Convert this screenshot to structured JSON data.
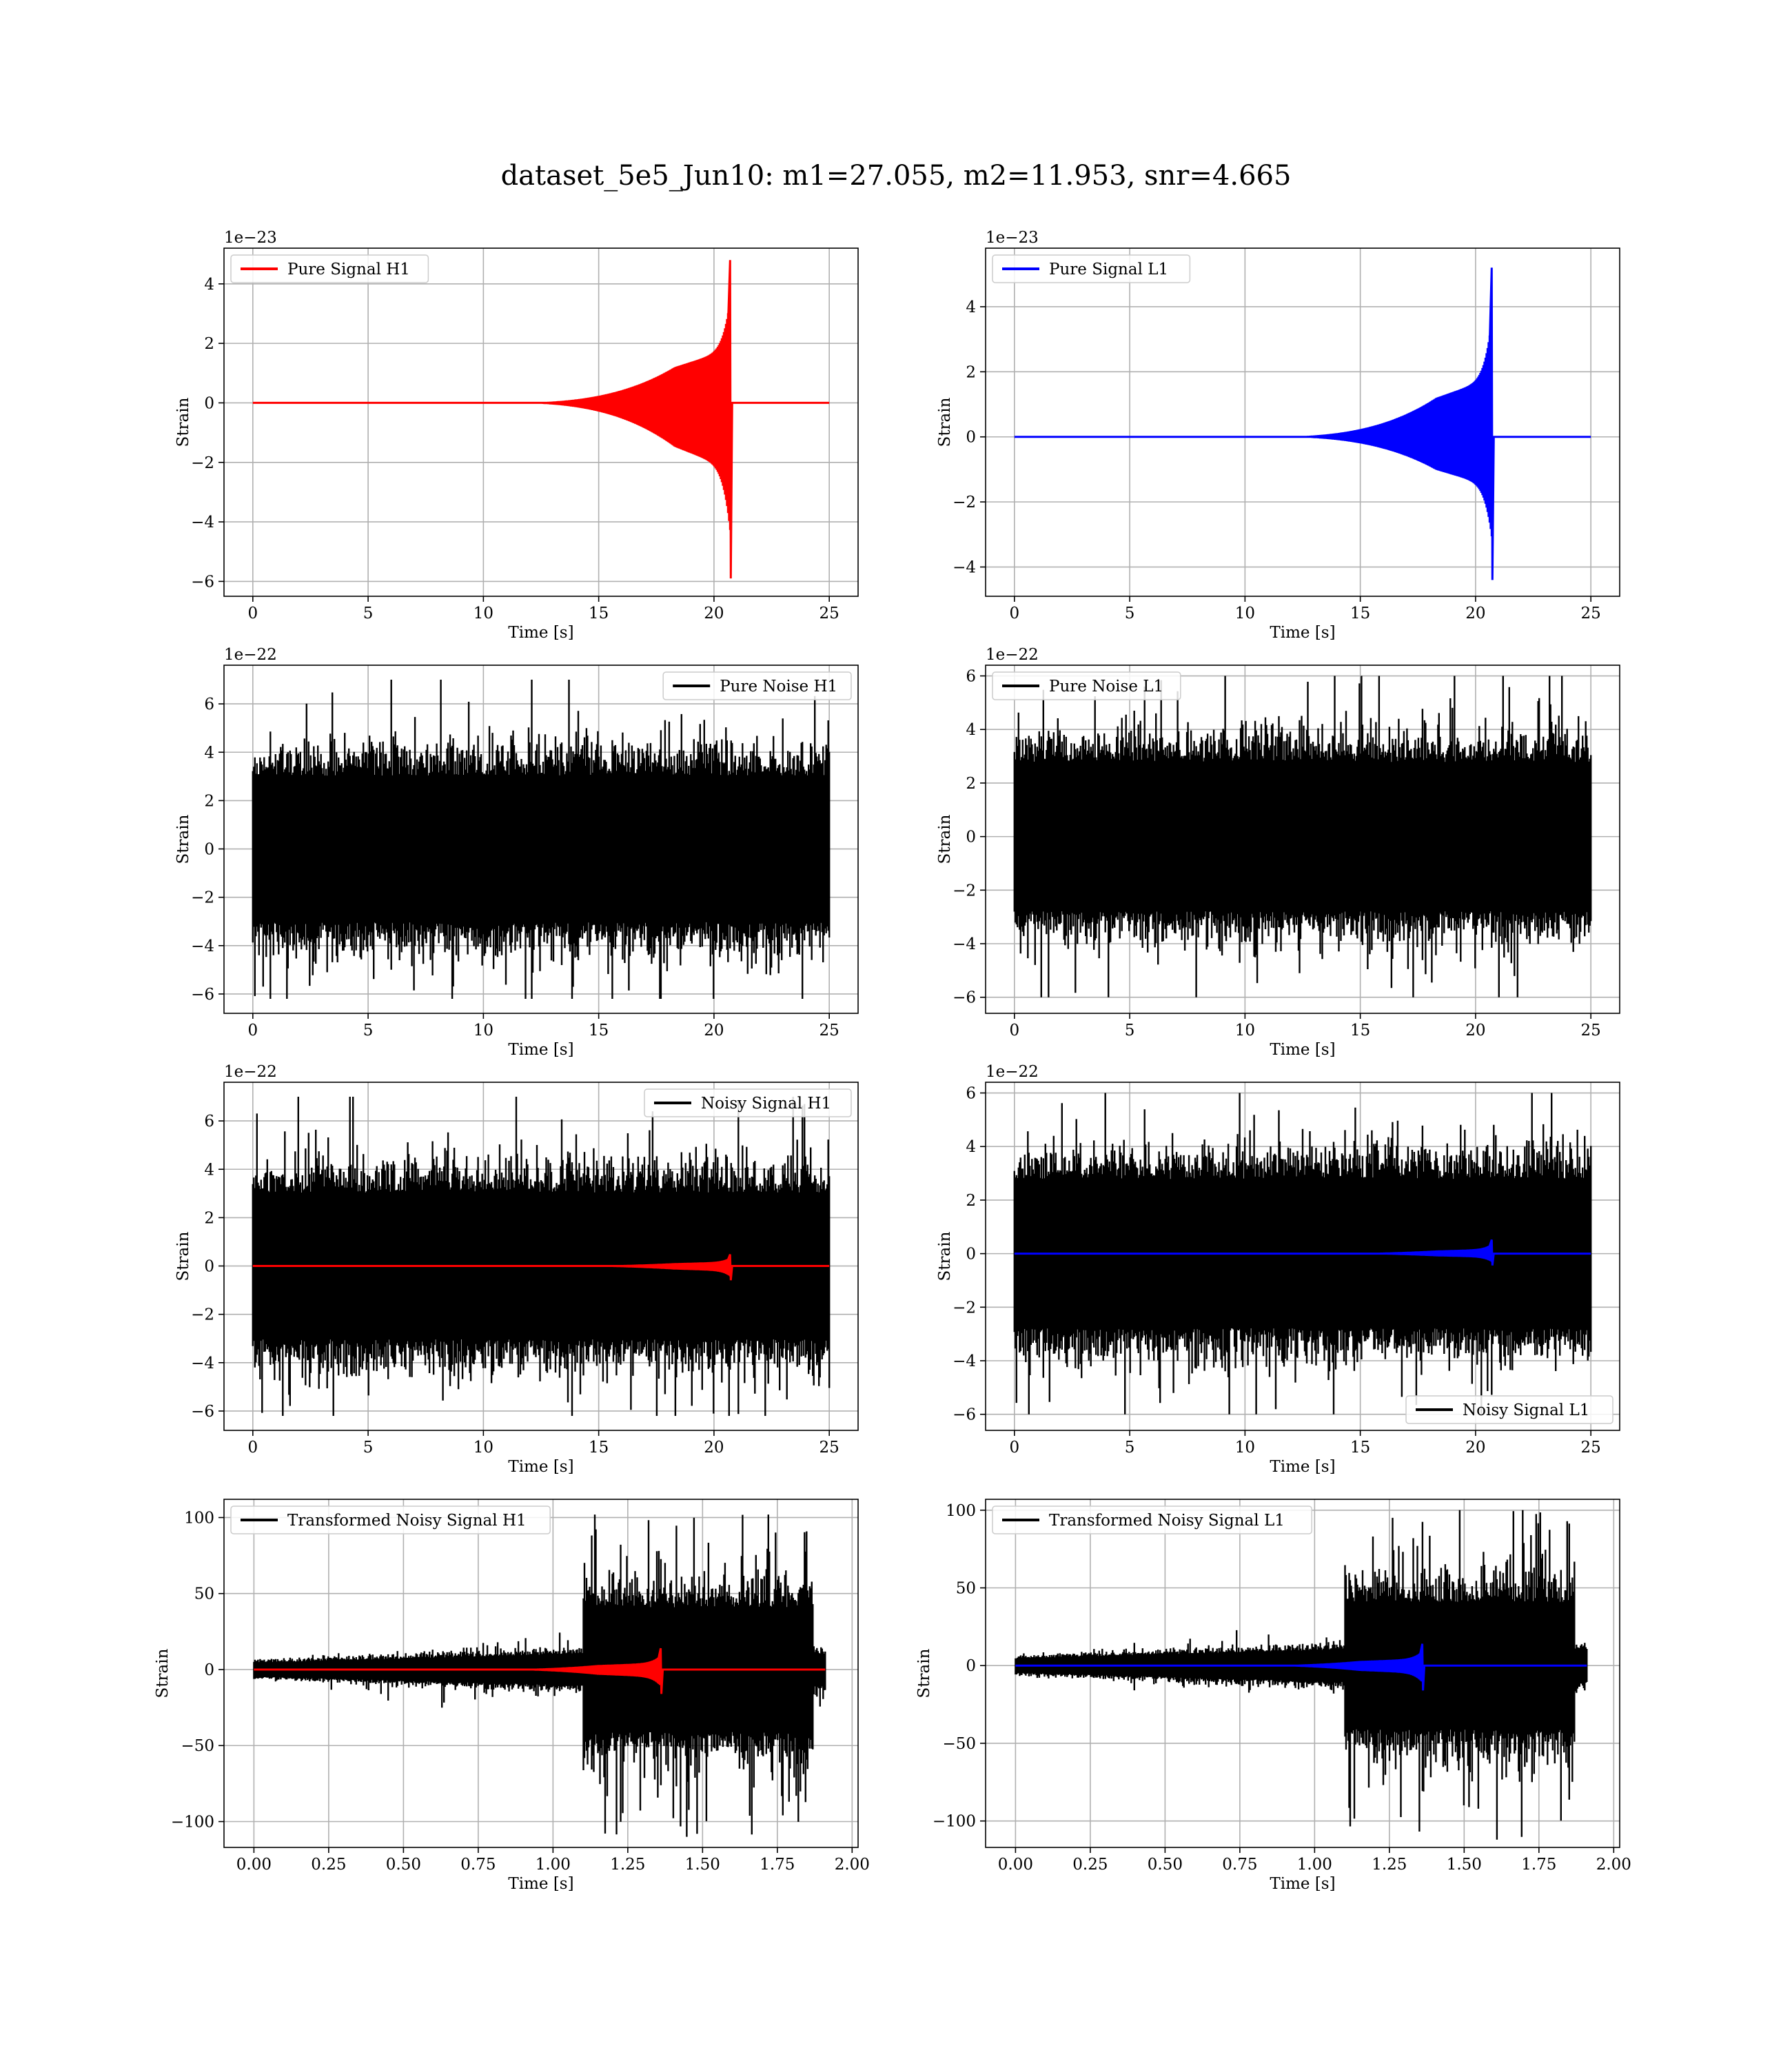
{
  "figure": {
    "title": "dataset_5e5_Jun10: m1=27.055, m2=11.953, snr=4.665"
  },
  "chart_data": [
    {
      "type": "line",
      "row": 0,
      "col": 0,
      "xlabel": "Time [s]",
      "ylabel": "Strain",
      "offset_text": "1e−23",
      "xlim": [
        -1.25,
        26.25
      ],
      "ylim": [
        -6.5,
        5.2
      ],
      "xticks": [
        0,
        5,
        10,
        15,
        20,
        25
      ],
      "yticks": [
        -6,
        -4,
        -2,
        0,
        2,
        4
      ],
      "xtick_labels": [
        "0",
        "5",
        "10",
        "15",
        "20",
        "25"
      ],
      "ytick_labels": [
        "−6",
        "−4",
        "−2",
        "0",
        "2",
        "4"
      ],
      "grid": true,
      "legend": "upper-left",
      "series": [
        {
          "name": "Pure Signal H1",
          "color": "#ff0000",
          "kind": "chirp",
          "x_range": [
            0,
            25
          ],
          "merger": 20.7,
          "peak": 4.8,
          "trough": -5.9,
          "plateau": 1.2,
          "plateau_start": 18.3,
          "onset": 10
        }
      ]
    },
    {
      "type": "line",
      "row": 0,
      "col": 1,
      "xlabel": "Time [s]",
      "ylabel": "Strain",
      "offset_text": "1e−23",
      "xlim": [
        -1.25,
        26.25
      ],
      "ylim": [
        -4.9,
        5.8
      ],
      "xticks": [
        0,
        5,
        10,
        15,
        20,
        25
      ],
      "yticks": [
        -4,
        -2,
        0,
        2,
        4
      ],
      "xtick_labels": [
        "0",
        "5",
        "10",
        "15",
        "20",
        "25"
      ],
      "ytick_labels": [
        "−4",
        "−2",
        "0",
        "2",
        "4"
      ],
      "grid": true,
      "legend": "upper-left",
      "series": [
        {
          "name": "Pure Signal L1",
          "color": "#0000ff",
          "kind": "chirp",
          "x_range": [
            0,
            25
          ],
          "merger": 20.7,
          "peak": 5.2,
          "trough": -4.4,
          "plateau": 1.2,
          "plateau_start": 18.3,
          "onset": 10
        }
      ]
    },
    {
      "type": "line",
      "row": 1,
      "col": 0,
      "xlabel": "Time [s]",
      "ylabel": "Strain",
      "offset_text": "1e−22",
      "xlim": [
        -1.25,
        26.25
      ],
      "ylim": [
        -6.8,
        7.6
      ],
      "xticks": [
        0,
        5,
        10,
        15,
        20,
        25
      ],
      "yticks": [
        -6,
        -4,
        -2,
        0,
        2,
        4,
        6
      ],
      "xtick_labels": [
        "0",
        "5",
        "10",
        "15",
        "20",
        "25"
      ],
      "ytick_labels": [
        "−6",
        "−4",
        "−2",
        "0",
        "2",
        "4",
        "6"
      ],
      "grid": true,
      "legend": "upper-right",
      "series": [
        {
          "name": "Pure Noise H1",
          "color": "#000000",
          "kind": "noise",
          "x_range": [
            0,
            25
          ],
          "amplitude": 3.7,
          "max": 7.0,
          "min": -6.2
        }
      ]
    },
    {
      "type": "line",
      "row": 1,
      "col": 1,
      "xlabel": "Time [s]",
      "ylabel": "Strain",
      "offset_text": "1e−22",
      "xlim": [
        -1.25,
        26.25
      ],
      "ylim": [
        -6.6,
        6.4
      ],
      "xticks": [
        0,
        5,
        10,
        15,
        20,
        25
      ],
      "yticks": [
        -6,
        -4,
        -2,
        0,
        2,
        4,
        6
      ],
      "xtick_labels": [
        "0",
        "5",
        "10",
        "15",
        "20",
        "25"
      ],
      "ytick_labels": [
        "−6",
        "−4",
        "−2",
        "0",
        "2",
        "4",
        "6"
      ],
      "grid": true,
      "legend": "upper-left",
      "series": [
        {
          "name": "Pure Noise L1",
          "color": "#000000",
          "kind": "noise",
          "x_range": [
            0,
            25
          ],
          "amplitude": 3.4,
          "max": 6.0,
          "min": -6.0
        }
      ]
    },
    {
      "type": "line",
      "row": 2,
      "col": 0,
      "xlabel": "Time [s]",
      "ylabel": "Strain",
      "offset_text": "1e−22",
      "xlim": [
        -1.25,
        26.25
      ],
      "ylim": [
        -6.8,
        7.6
      ],
      "xticks": [
        0,
        5,
        10,
        15,
        20,
        25
      ],
      "yticks": [
        -6,
        -4,
        -2,
        0,
        2,
        4,
        6
      ],
      "xtick_labels": [
        "0",
        "5",
        "10",
        "15",
        "20",
        "25"
      ],
      "ytick_labels": [
        "−6",
        "−4",
        "−2",
        "0",
        "2",
        "4",
        "6"
      ],
      "grid": true,
      "legend": "upper-right",
      "series": [
        {
          "name": "Noisy Signal H1",
          "color": "#000000",
          "kind": "noise",
          "x_range": [
            0,
            25
          ],
          "amplitude": 3.7,
          "max": 7.0,
          "min": -6.2
        },
        {
          "name": "",
          "color": "#ff0000",
          "kind": "chirp",
          "x_range": [
            0,
            25
          ],
          "merger": 20.7,
          "peak": 0.48,
          "trough": -0.59,
          "plateau": 0.12,
          "plateau_start": 18.3,
          "onset": 10
        }
      ]
    },
    {
      "type": "line",
      "row": 2,
      "col": 1,
      "xlabel": "Time [s]",
      "ylabel": "Strain",
      "offset_text": "1e−22",
      "xlim": [
        -1.25,
        26.25
      ],
      "ylim": [
        -6.6,
        6.4
      ],
      "xticks": [
        0,
        5,
        10,
        15,
        20,
        25
      ],
      "yticks": [
        -6,
        -4,
        -2,
        0,
        2,
        4,
        6
      ],
      "xtick_labels": [
        "0",
        "5",
        "10",
        "15",
        "20",
        "25"
      ],
      "ytick_labels": [
        "−6",
        "−4",
        "−2",
        "0",
        "2",
        "4",
        "6"
      ],
      "grid": true,
      "legend": "lower-right",
      "series": [
        {
          "name": "Noisy Signal L1",
          "color": "#000000",
          "kind": "noise",
          "x_range": [
            0,
            25
          ],
          "amplitude": 3.4,
          "max": 6.0,
          "min": -6.0
        },
        {
          "name": "",
          "color": "#0000ff",
          "kind": "chirp",
          "x_range": [
            0,
            25
          ],
          "merger": 20.7,
          "peak": 0.52,
          "trough": -0.44,
          "plateau": 0.12,
          "plateau_start": 18.3,
          "onset": 10
        }
      ]
    },
    {
      "type": "line",
      "row": 3,
      "col": 0,
      "xlabel": "Time [s]",
      "ylabel": "Strain",
      "offset_text": "",
      "xlim": [
        -0.1,
        2.02
      ],
      "ylim": [
        -117,
        112
      ],
      "xticks": [
        0,
        0.25,
        0.5,
        0.75,
        1.0,
        1.25,
        1.5,
        1.75,
        2.0
      ],
      "yticks": [
        -100,
        -50,
        0,
        50,
        100
      ],
      "xtick_labels": [
        "0.00",
        "0.25",
        "0.50",
        "0.75",
        "1.00",
        "1.25",
        "1.50",
        "1.75",
        "2.00"
      ],
      "ytick_labels": [
        "−100",
        "−50",
        "0",
        "50",
        "100"
      ],
      "grid": true,
      "legend": "upper-left",
      "series": [
        {
          "name": "Transformed Noisy Signal H1",
          "color": "#000000",
          "kind": "whitened",
          "x_range": [
            0,
            1.91
          ],
          "burst_start": 1.1,
          "burst_end": 1.87,
          "low_amp": 8,
          "high_amp": 50,
          "max": 102,
          "min": -110
        },
        {
          "name": "",
          "color": "#ff0000",
          "kind": "chirp",
          "x_range": [
            0,
            1.91
          ],
          "merger": 1.36,
          "peak": 14,
          "trough": -16,
          "plateau": 3,
          "plateau_start": 1.15,
          "onset": 0.6
        }
      ]
    },
    {
      "type": "line",
      "row": 3,
      "col": 1,
      "xlabel": "Time [s]",
      "ylabel": "Strain",
      "offset_text": "",
      "xlim": [
        -0.1,
        2.02
      ],
      "ylim": [
        -117,
        107
      ],
      "xticks": [
        0,
        0.25,
        0.5,
        0.75,
        1.0,
        1.25,
        1.5,
        1.75,
        2.0
      ],
      "yticks": [
        -100,
        -50,
        0,
        50,
        100
      ],
      "xtick_labels": [
        "0.00",
        "0.25",
        "0.50",
        "0.75",
        "1.00",
        "1.25",
        "1.50",
        "1.75",
        "2.00"
      ],
      "ytick_labels": [
        "−100",
        "−50",
        "0",
        "50",
        "100"
      ],
      "grid": true,
      "legend": "upper-left",
      "series": [
        {
          "name": "Transformed Noisy Signal L1",
          "color": "#000000",
          "kind": "whitened",
          "x_range": [
            0,
            1.91
          ],
          "burst_start": 1.1,
          "burst_end": 1.87,
          "low_amp": 8,
          "high_amp": 50,
          "max": 100,
          "min": -112
        },
        {
          "name": "",
          "color": "#0000ff",
          "kind": "chirp",
          "x_range": [
            0,
            1.91
          ],
          "merger": 1.36,
          "peak": 14,
          "trough": -16,
          "plateau": 3,
          "plateau_start": 1.15,
          "onset": 0.6
        }
      ]
    }
  ]
}
